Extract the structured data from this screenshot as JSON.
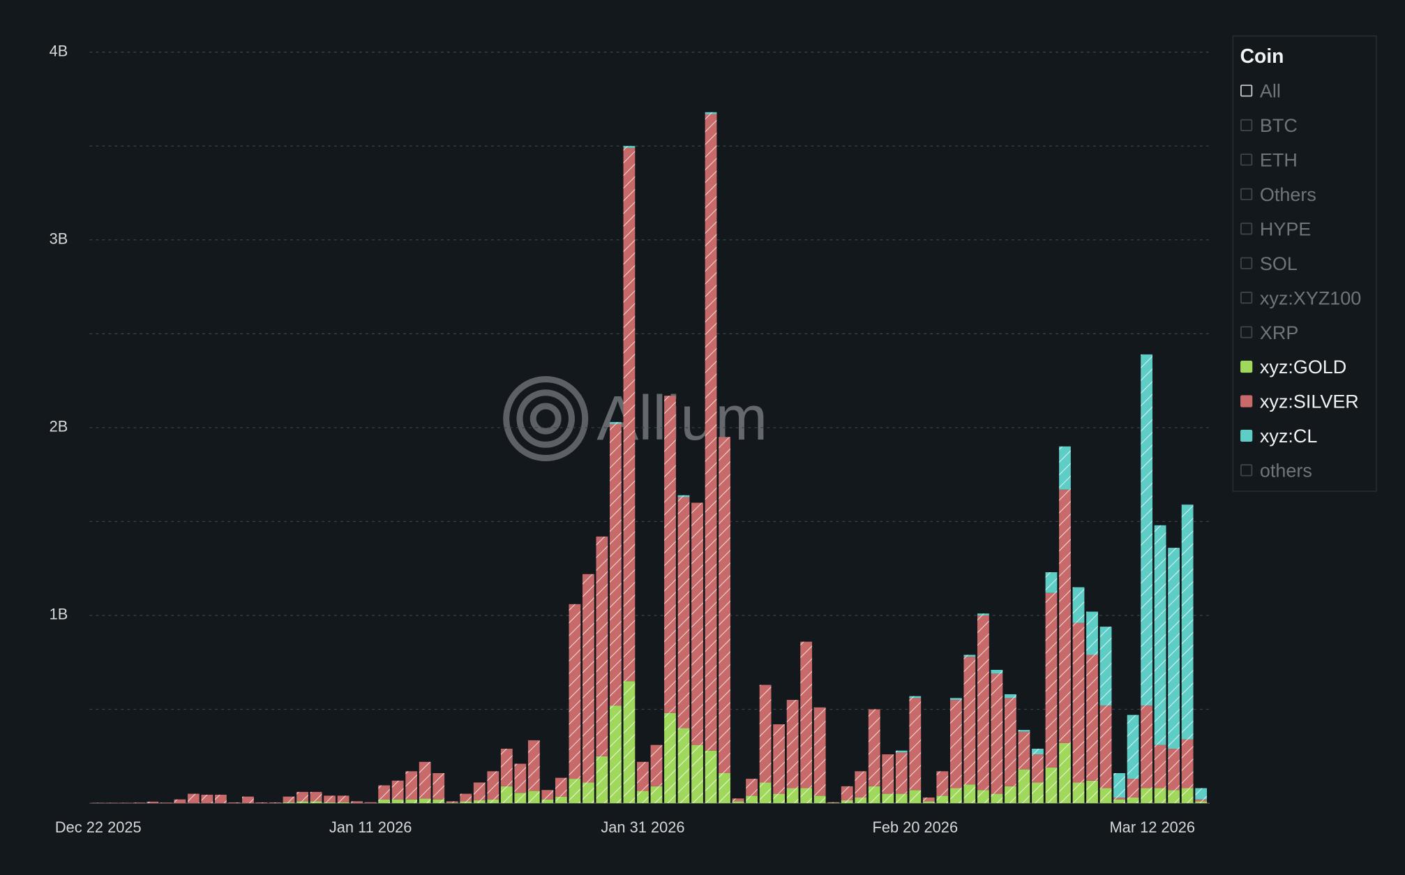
{
  "watermark": "Allium",
  "chart_data": {
    "type": "stacked_bar",
    "categories": [
      "Dec 22 2025",
      null,
      null,
      null,
      null,
      null,
      null,
      null,
      null,
      null,
      null,
      null,
      null,
      null,
      null,
      null,
      null,
      null,
      null,
      null,
      "Jan 11 2026",
      null,
      null,
      null,
      null,
      null,
      null,
      null,
      null,
      null,
      null,
      null,
      null,
      null,
      null,
      null,
      null,
      null,
      null,
      null,
      "Jan 31 2026",
      null,
      null,
      null,
      null,
      null,
      null,
      null,
      null,
      null,
      null,
      null,
      null,
      null,
      null,
      null,
      null,
      null,
      null,
      null,
      "Feb 20 2026",
      null,
      null,
      null,
      null,
      null,
      null,
      null,
      null,
      null,
      null,
      null,
      null,
      null,
      null,
      null,
      null,
      null,
      null,
      null,
      "Mar 12 2026",
      null
    ],
    "series": [
      {
        "name": "xyz:GOLD",
        "color": "#9fd85a",
        "values": [
          0,
          0,
          0,
          0,
          0,
          0,
          0,
          0,
          0,
          0,
          0,
          0,
          0,
          0,
          5000000.0,
          10000000.0,
          10000000.0,
          5000000.0,
          5000000.0,
          0,
          0,
          20000000.0,
          20000000.0,
          20000000.0,
          25000000.0,
          20000000.0,
          3000000.0,
          10000000.0,
          15000000.0,
          20000000.0,
          90000000.0,
          55000000.0,
          65000000.0,
          20000000.0,
          35000000.0,
          130000000.0,
          110000000.0,
          250000000.0,
          520000000.0,
          650000000.0,
          65000000.0,
          90000000.0,
          480000000.0,
          400000000.0,
          310000000.0,
          280000000.0,
          160000000.0,
          10000000.0,
          40000000.0,
          110000000.0,
          50000000.0,
          80000000.0,
          80000000.0,
          40000000.0,
          2000000.0,
          15000000.0,
          30000000.0,
          90000000.0,
          50000000.0,
          50000000.0,
          70000000.0,
          10000000.0,
          40000000.0,
          80000000.0,
          100000000.0,
          70000000.0,
          50000000.0,
          90000000.0,
          180000000.0,
          110000000.0,
          190000000.0,
          320000000.0,
          110000000.0,
          120000000.0,
          80000000.0,
          20000000.0,
          30000000.0,
          80000000.0,
          80000000.0,
          70000000.0,
          80000000.0,
          10000000.0
        ]
      },
      {
        "name": "xyz:SILVER",
        "color": "#c96a6a",
        "values": [
          2000000.0,
          2000000.0,
          2000000.0,
          3000000.0,
          8000000.0,
          3000000.0,
          20000000.0,
          50000000.0,
          45000000.0,
          45000000.0,
          4000000.0,
          35000000.0,
          4000000.0,
          4000000.0,
          30000000.0,
          50000000.0,
          50000000.0,
          35000000.0,
          35000000.0,
          10000000.0,
          5000000.0,
          75000000.0,
          100000000.0,
          150000000.0,
          195000000.0,
          140000000.0,
          7000000.0,
          40000000.0,
          95000000.0,
          150000000.0,
          200000000.0,
          155000000.0,
          270000000.0,
          50000000.0,
          100000000.0,
          930000000.0,
          1110000000.0,
          1170000000.0,
          1500000000.0,
          2840000000.0,
          155000000.0,
          220000000.0,
          1690000000.0,
          1230000000.0,
          1290000000.0,
          3390000000.0,
          1790000000.0,
          15000000.0,
          90000000.0,
          520000000.0,
          370000000.0,
          470000000.0,
          780000000.0,
          470000000.0,
          3000000.0,
          75000000.0,
          140000000.0,
          410000000.0,
          210000000.0,
          220000000.0,
          490000000.0,
          20000000.0,
          130000000.0,
          470000000.0,
          680000000.0,
          930000000.0,
          640000000.0,
          470000000.0,
          200000000.0,
          150000000.0,
          930000000.0,
          1350000000.0,
          850000000.0,
          670000000.0,
          440000000.0,
          10000000.0,
          100000000.0,
          440000000.0,
          230000000.0,
          220000000.0,
          260000000.0,
          10000000.0
        ]
      },
      {
        "name": "xyz:CL",
        "color": "#5ecdc6",
        "values": [
          0,
          0,
          0,
          0,
          0,
          0,
          0,
          0,
          0,
          0,
          0,
          0,
          0,
          0,
          0,
          0,
          0,
          0,
          0,
          0,
          0,
          0,
          0,
          0,
          0,
          0,
          0,
          0,
          0,
          0,
          0,
          0,
          0,
          0,
          0,
          0,
          0,
          0,
          10000000.0,
          10000000.0,
          0,
          0,
          0,
          10000000.0,
          0,
          10000000.0,
          0,
          0,
          0,
          0,
          0,
          0,
          0,
          0,
          0,
          0,
          0,
          0,
          0,
          10000000.0,
          10000000.0,
          0,
          0,
          10000000.0,
          10000000.0,
          10000000.0,
          20000000.0,
          20000000.0,
          10000000.0,
          30000000.0,
          110000000.0,
          230000000.0,
          190000000.0,
          230000000.0,
          420000000.0,
          130000000.0,
          340000000.0,
          1870000000.0,
          1170000000.0,
          1070000000.0,
          1250000000.0,
          60000000.0
        ]
      }
    ],
    "ylim": [
      0,
      4000000000.0
    ],
    "yticks": [
      {
        "value": 1000000000.0,
        "label": "1B"
      },
      {
        "value": 2000000000.0,
        "label": "2B"
      },
      {
        "value": 3000000000.0,
        "label": "3B"
      },
      {
        "value": 4000000000.0,
        "label": "4B"
      }
    ],
    "minor_yticks": [
      500000000.0,
      1500000000.0,
      2500000000.0,
      3500000000.0
    ],
    "grid": true,
    "hatched": true,
    "legend": {
      "title": "Coin",
      "position": "right",
      "hidden_before": [
        "All",
        "BTC",
        "ETH",
        "Others",
        "HYPE",
        "SOL",
        "xyz:XYZ100",
        "XRP"
      ],
      "hidden_after": [
        "others"
      ]
    }
  }
}
